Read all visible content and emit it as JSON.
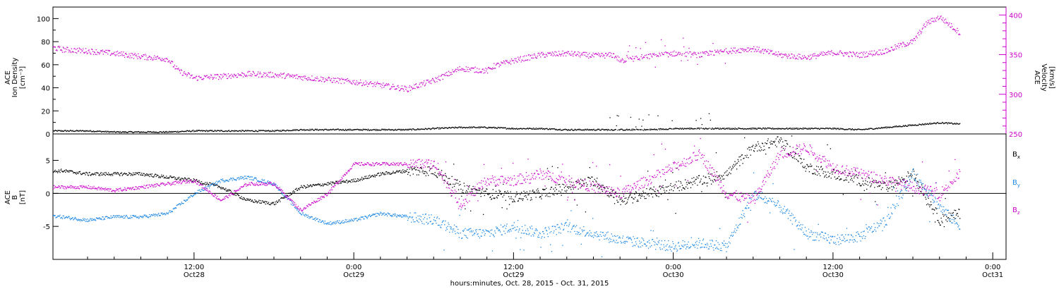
{
  "chart_data": [
    {
      "type": "scatter",
      "panel": "top",
      "left_axis_label": [
        "ACE",
        "Ion Density",
        "[cm⁻³]"
      ],
      "right_axis_label": [
        "ACE",
        "Velocity",
        "[km/s]"
      ],
      "left_ylim": [
        0,
        110
      ],
      "left_yticks": [
        0,
        20,
        40,
        60,
        80,
        100
      ],
      "right_ylim": [
        250,
        410
      ],
      "right_yticks": [
        250,
        300,
        350,
        400
      ],
      "series": [
        {
          "name": "Ion Density",
          "axis": "left",
          "color": "#000000",
          "x_hours": [
            0,
            2,
            4,
            6,
            8,
            10,
            12,
            14,
            16,
            18,
            20,
            22,
            24,
            26,
            28,
            30,
            32,
            34,
            36,
            38,
            40,
            42,
            44,
            46,
            48,
            50,
            52,
            54,
            56,
            58,
            60,
            62,
            64,
            66,
            68,
            69.5
          ],
          "values": [
            3,
            3,
            3,
            2,
            2,
            2,
            3,
            3,
            3,
            3,
            4,
            4,
            4,
            4,
            4,
            5,
            6,
            6,
            5,
            5,
            4,
            4,
            4,
            4,
            5,
            5,
            5,
            5,
            5,
            5,
            5,
            4,
            6,
            8,
            10,
            9
          ]
        },
        {
          "name": "Velocity",
          "axis": "right",
          "color": "#cc00cc",
          "x_hours": [
            0,
            2,
            4,
            6,
            8,
            10,
            10.8,
            12,
            14,
            16,
            18,
            20,
            22,
            24,
            26,
            28,
            28.5,
            30,
            32,
            34,
            34.5,
            36,
            38,
            40,
            42,
            43.5,
            44,
            46,
            48,
            50,
            52,
            54,
            56,
            58,
            60,
            62,
            64,
            65,
            66,
            67,
            68,
            69.5
          ],
          "values": [
            365,
            357,
            355,
            352,
            348,
            345,
            330,
            321,
            323,
            326,
            325,
            322,
            319,
            316,
            312,
            307,
            310,
            318,
            333,
            330,
            336,
            343,
            350,
            352,
            349,
            350,
            343,
            348,
            352,
            350,
            355,
            358,
            350,
            347,
            353,
            350,
            355,
            362,
            367,
            390,
            398,
            378
          ]
        }
      ]
    },
    {
      "type": "scatter",
      "panel": "bottom",
      "left_axis_label": [
        "ACE",
        "B",
        "[nT]"
      ],
      "ylim": [
        -10,
        9
      ],
      "yticks": [
        -5,
        0,
        5
      ],
      "xlabel": "hours:minutes, Oct. 28, 2015 - Oct. 31, 2015",
      "x_ticks": [
        {
          "hour": 12,
          "time": "12:00",
          "date": "Oct28"
        },
        {
          "hour": 24,
          "time": "0:00",
          "date": "Oct29"
        },
        {
          "hour": 36,
          "time": "12:00",
          "date": "Oct29"
        },
        {
          "hour": 48,
          "time": "0:00",
          "date": "Oct30"
        },
        {
          "hour": 60,
          "time": "12:00",
          "date": "Oct30"
        },
        {
          "hour": 72,
          "time": "0:00",
          "date": "Oct31"
        }
      ],
      "xlim_hours": [
        1.4,
        73
      ],
      "series": [
        {
          "name": "B",
          "subscript": "x",
          "color": "#000000",
          "x_hours": [
            0,
            2,
            4,
            6,
            8,
            10,
            12,
            14,
            16,
            18,
            20,
            22,
            24,
            26,
            28,
            30,
            32,
            34,
            36,
            38,
            40,
            42,
            44,
            46,
            48,
            50,
            52,
            54,
            56,
            58,
            60,
            62,
            64,
            66,
            68,
            69.5
          ],
          "values": [
            3,
            3.5,
            3,
            3,
            3,
            2.5,
            2,
            1,
            -1,
            -1.5,
            1,
            1.5,
            2,
            3,
            3.5,
            3.5,
            1,
            0,
            -0.5,
            0,
            1,
            2,
            -1,
            0,
            1,
            2,
            3,
            7,
            8,
            4,
            3,
            2,
            1,
            3,
            -4,
            -3
          ]
        },
        {
          "name": "B",
          "subscript": "y",
          "color": "#1e88e5",
          "x_hours": [
            0,
            2,
            4,
            6,
            8,
            10,
            12,
            14,
            16,
            18,
            20,
            22,
            24,
            26,
            28,
            30,
            32,
            34,
            36,
            38,
            40,
            42,
            44,
            46,
            48,
            50,
            52,
            54,
            56,
            58,
            60,
            62,
            64,
            66,
            68,
            69.5
          ],
          "values": [
            -3,
            -3.5,
            -4,
            -3.5,
            -3.5,
            -3,
            0,
            2,
            2.5,
            1.5,
            -3,
            -4.5,
            -4,
            -3,
            -3.5,
            -4,
            -6,
            -6,
            -5,
            -6,
            -5,
            -6,
            -7,
            -7.5,
            -8,
            -7.5,
            -8,
            0,
            -2,
            -6,
            -7,
            -6.5,
            -4,
            3,
            -2,
            -5
          ]
        },
        {
          "name": "B",
          "subscript": "z",
          "color": "#cc00cc",
          "x_hours": [
            0,
            2,
            4,
            6,
            8,
            10,
            12,
            14,
            16,
            18,
            20,
            22,
            24,
            26,
            28,
            30,
            32,
            34,
            36,
            38,
            40,
            42,
            44,
            46,
            48,
            50,
            52,
            54,
            56,
            58,
            60,
            62,
            64,
            66,
            68,
            69.5
          ],
          "values": [
            1,
            1,
            1,
            0.5,
            1,
            1.5,
            2,
            -1,
            1.5,
            1.5,
            -2.5,
            0,
            4.5,
            4.5,
            4.5,
            4.5,
            -1.5,
            2,
            2,
            3,
            2,
            1,
            0,
            2,
            4,
            6,
            0,
            -1,
            6,
            7,
            4,
            3,
            2,
            1,
            0,
            3
          ]
        }
      ]
    }
  ]
}
